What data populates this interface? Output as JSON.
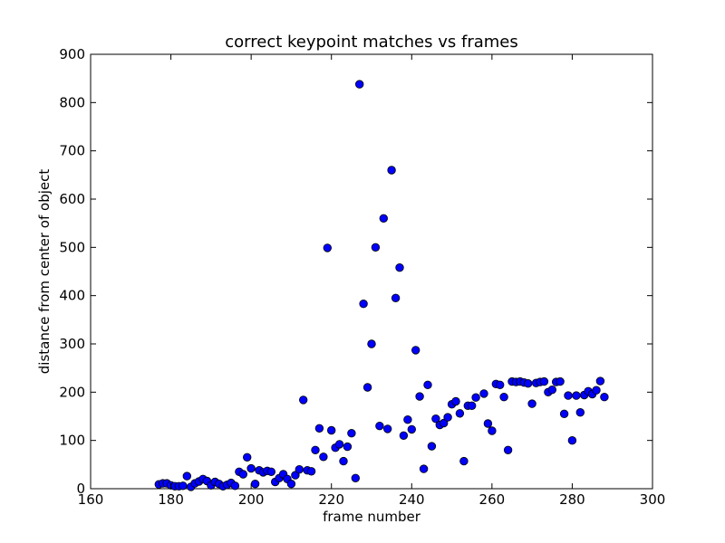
{
  "chart_data": {
    "type": "scatter",
    "title": "correct keypoint matches vs frames",
    "xlabel": "frame number",
    "ylabel": "distance from center of object",
    "xlim": [
      160,
      300
    ],
    "ylim": [
      0,
      900
    ],
    "xticks": [
      "160",
      "180",
      "200",
      "220",
      "240",
      "260",
      "280",
      "300"
    ],
    "yticks": [
      "0",
      "100",
      "200",
      "300",
      "400",
      "500",
      "600",
      "700",
      "800",
      "900"
    ],
    "grid": false,
    "marker_color": "#0000ff",
    "series": [
      {
        "points": [
          [
            177,
            9
          ],
          [
            178,
            11
          ],
          [
            179,
            11
          ],
          [
            180,
            7
          ],
          [
            181,
            5
          ],
          [
            182,
            5
          ],
          [
            183,
            6
          ],
          [
            184,
            26
          ],
          [
            185,
            4
          ],
          [
            186,
            11
          ],
          [
            187,
            15
          ],
          [
            188,
            20
          ],
          [
            189,
            16
          ],
          [
            190,
            7
          ],
          [
            191,
            14
          ],
          [
            192,
            10
          ],
          [
            193,
            5
          ],
          [
            194,
            8
          ],
          [
            195,
            12
          ],
          [
            196,
            6
          ],
          [
            197,
            35
          ],
          [
            198,
            30
          ],
          [
            199,
            65
          ],
          [
            200,
            42
          ],
          [
            201,
            10
          ],
          [
            202,
            38
          ],
          [
            203,
            34
          ],
          [
            204,
            37
          ],
          [
            205,
            35
          ],
          [
            206,
            14
          ],
          [
            207,
            22
          ],
          [
            208,
            30
          ],
          [
            209,
            20
          ],
          [
            210,
            10
          ],
          [
            211,
            28
          ],
          [
            212,
            40
          ],
          [
            213,
            184
          ],
          [
            214,
            38
          ],
          [
            215,
            36
          ],
          [
            216,
            80
          ],
          [
            217,
            125
          ],
          [
            218,
            66
          ],
          [
            219,
            499
          ],
          [
            220,
            121
          ],
          [
            221,
            85
          ],
          [
            222,
            92
          ],
          [
            223,
            57
          ],
          [
            224,
            87
          ],
          [
            225,
            115
          ],
          [
            226,
            22
          ],
          [
            227,
            838
          ],
          [
            228,
            383
          ],
          [
            229,
            210
          ],
          [
            230,
            300
          ],
          [
            231,
            500
          ],
          [
            232,
            130
          ],
          [
            233,
            560
          ],
          [
            234,
            124
          ],
          [
            235,
            660
          ],
          [
            236,
            395
          ],
          [
            237,
            458
          ],
          [
            238,
            110
          ],
          [
            239,
            143
          ],
          [
            240,
            123
          ],
          [
            241,
            287
          ],
          [
            242,
            191
          ],
          [
            243,
            41
          ],
          [
            244,
            215
          ],
          [
            245,
            88
          ],
          [
            246,
            145
          ],
          [
            247,
            132
          ],
          [
            248,
            136
          ],
          [
            249,
            148
          ],
          [
            250,
            175
          ],
          [
            251,
            181
          ],
          [
            252,
            156
          ],
          [
            253,
            57
          ],
          [
            254,
            172
          ],
          [
            255,
            172
          ],
          [
            256,
            189
          ],
          [
            258,
            197
          ],
          [
            259,
            135
          ],
          [
            260,
            120
          ],
          [
            261,
            217
          ],
          [
            262,
            215
          ],
          [
            263,
            190
          ],
          [
            264,
            80
          ],
          [
            265,
            222
          ],
          [
            266,
            221
          ],
          [
            267,
            222
          ],
          [
            268,
            220
          ],
          [
            269,
            218
          ],
          [
            270,
            176
          ],
          [
            271,
            219
          ],
          [
            272,
            221
          ],
          [
            273,
            222
          ],
          [
            274,
            200
          ],
          [
            275,
            205
          ],
          [
            276,
            221
          ],
          [
            277,
            222
          ],
          [
            278,
            155
          ],
          [
            279,
            193
          ],
          [
            280,
            100
          ],
          [
            281,
            193
          ],
          [
            282,
            158
          ],
          [
            283,
            194
          ],
          [
            284,
            202
          ],
          [
            285,
            196
          ],
          [
            286,
            204
          ],
          [
            287,
            223
          ],
          [
            288,
            190
          ]
        ]
      }
    ]
  }
}
